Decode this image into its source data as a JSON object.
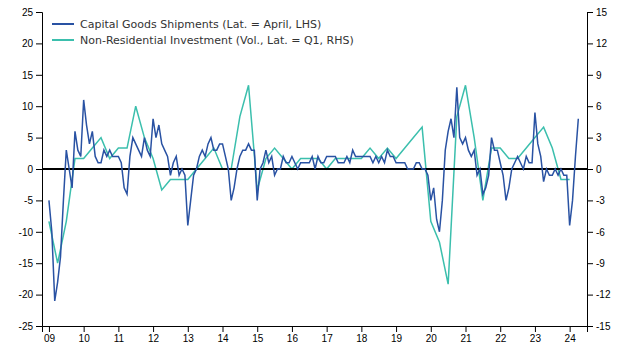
{
  "chart_data": {
    "type": "line",
    "legend": "upper left",
    "grid": false,
    "xlim": [
      2008.8,
      2024.5
    ],
    "xticks": [
      {
        "value": 2009,
        "label": "09"
      },
      {
        "value": 2010,
        "label": "10"
      },
      {
        "value": 2011,
        "label": "11"
      },
      {
        "value": 2012,
        "label": "12"
      },
      {
        "value": 2013,
        "label": "13"
      },
      {
        "value": 2014,
        "label": "14"
      },
      {
        "value": 2015,
        "label": "15"
      },
      {
        "value": 2016,
        "label": "16"
      },
      {
        "value": 2017,
        "label": "17"
      },
      {
        "value": 2018,
        "label": "18"
      },
      {
        "value": 2019,
        "label": "19"
      },
      {
        "value": 2020,
        "label": "20"
      },
      {
        "value": 2021,
        "label": "21"
      },
      {
        "value": 2022,
        "label": "22"
      },
      {
        "value": 2023,
        "label": "23"
      },
      {
        "value": 2024,
        "label": "24"
      }
    ],
    "ylim": [
      -25,
      25
    ],
    "yticks": [
      -25,
      -20,
      -15,
      -10,
      -5,
      0,
      5,
      10,
      15,
      20,
      25
    ],
    "y2lim": [
      -15,
      15
    ],
    "y2ticks": [
      -15,
      -12,
      -9,
      -6,
      -3,
      0,
      3,
      6,
      9,
      12,
      15
    ],
    "hlines": [
      {
        "y": 0,
        "color": "#000000"
      }
    ],
    "series": [
      {
        "name": "Capital Goods Shipments (Lat. = April, LHS)",
        "color": "#2952a3",
        "axis": "y",
        "x": [
          2009.0,
          2009.083,
          2009.167,
          2009.25,
          2009.333,
          2009.417,
          2009.5,
          2009.583,
          2009.667,
          2009.75,
          2009.833,
          2009.917,
          2010.0,
          2010.083,
          2010.167,
          2010.25,
          2010.333,
          2010.417,
          2010.5,
          2010.583,
          2010.667,
          2010.75,
          2010.833,
          2010.917,
          2011.0,
          2011.083,
          2011.167,
          2011.25,
          2011.333,
          2011.417,
          2011.5,
          2011.583,
          2011.667,
          2011.75,
          2011.833,
          2011.917,
          2012.0,
          2012.083,
          2012.167,
          2012.25,
          2012.333,
          2012.417,
          2012.5,
          2012.583,
          2012.667,
          2012.75,
          2012.833,
          2012.917,
          2013.0,
          2013.083,
          2013.167,
          2013.25,
          2013.333,
          2013.417,
          2013.5,
          2013.583,
          2013.667,
          2013.75,
          2013.833,
          2013.917,
          2014.0,
          2014.083,
          2014.167,
          2014.25,
          2014.333,
          2014.417,
          2014.5,
          2014.583,
          2014.667,
          2014.75,
          2014.833,
          2014.917,
          2015.0,
          2015.083,
          2015.167,
          2015.25,
          2015.333,
          2015.417,
          2015.5,
          2015.583,
          2015.667,
          2015.75,
          2015.833,
          2015.917,
          2016.0,
          2016.083,
          2016.167,
          2016.25,
          2016.333,
          2016.417,
          2016.5,
          2016.583,
          2016.667,
          2016.75,
          2016.833,
          2016.917,
          2017.0,
          2017.083,
          2017.167,
          2017.25,
          2017.333,
          2017.417,
          2017.5,
          2017.583,
          2017.667,
          2017.75,
          2017.833,
          2017.917,
          2018.0,
          2018.083,
          2018.167,
          2018.25,
          2018.333,
          2018.417,
          2018.5,
          2018.583,
          2018.667,
          2018.75,
          2018.833,
          2018.917,
          2019.0,
          2019.083,
          2019.167,
          2019.25,
          2019.333,
          2019.417,
          2019.5,
          2019.583,
          2019.667,
          2019.75,
          2019.833,
          2019.917,
          2020.0,
          2020.083,
          2020.167,
          2020.25,
          2020.333,
          2020.417,
          2020.5,
          2020.583,
          2020.667,
          2020.75,
          2020.833,
          2020.917,
          2021.0,
          2021.083,
          2021.167,
          2021.25,
          2021.333,
          2021.417,
          2021.5,
          2021.583,
          2021.667,
          2021.75,
          2021.833,
          2021.917,
          2022.0,
          2022.083,
          2022.167,
          2022.25,
          2022.333,
          2022.417,
          2022.5,
          2022.583,
          2022.667,
          2022.75,
          2022.833,
          2022.917,
          2023.0,
          2023.083,
          2023.167,
          2023.25,
          2023.333,
          2023.417,
          2023.5,
          2023.583,
          2023.667,
          2023.75,
          2023.833,
          2023.917,
          2024.0,
          2024.083,
          2024.167,
          2024.25
        ],
        "values": [
          -5,
          -10,
          -21,
          -18,
          -14,
          -5,
          3,
          0,
          -3,
          6,
          3,
          2,
          11,
          7,
          4,
          6,
          2,
          1,
          1,
          3,
          2,
          3,
          2,
          2,
          2,
          1,
          -3,
          -4,
          2,
          5,
          4,
          3,
          2,
          5,
          3,
          2,
          8,
          5,
          7,
          4,
          3,
          2,
          -1,
          1,
          2,
          -1,
          0,
          -1,
          -9,
          -5,
          -1,
          0,
          2,
          3,
          2,
          4,
          5,
          3,
          3,
          4,
          4,
          2,
          0,
          -5,
          -3,
          0,
          2,
          3,
          3,
          4,
          3,
          3,
          -5,
          0,
          1,
          3,
          1,
          2,
          -1,
          0,
          0,
          2,
          1,
          1,
          2,
          1,
          0,
          1,
          1,
          1,
          1,
          2,
          0,
          2,
          1,
          1,
          2,
          2,
          2,
          2,
          1,
          1,
          1,
          2,
          1,
          3,
          2,
          2,
          2,
          2,
          2,
          2,
          1,
          2,
          1,
          2,
          1,
          3,
          2,
          2,
          1,
          1,
          1,
          1,
          0,
          0,
          0,
          1,
          1,
          0,
          0,
          -1,
          -5,
          -3,
          -8,
          -10,
          -5,
          3,
          6,
          8,
          5,
          13,
          5,
          4,
          5,
          3,
          2,
          3,
          -1,
          0,
          -4,
          -3,
          -1,
          5,
          3,
          3,
          1,
          -1,
          -5,
          -3,
          0,
          1,
          2,
          1,
          0,
          2,
          1,
          1,
          9,
          4,
          2,
          -2,
          0,
          -1,
          -1,
          0,
          -1,
          0,
          -1,
          -1,
          -9,
          -5,
          2,
          8
        ]
      },
      {
        "name": "Non-Residential Investment (Vol., Lat. = Q1, RHS)",
        "color": "#3bbfad",
        "axis": "y2",
        "x": [
          2009.0,
          2009.25,
          2009.5,
          2009.75,
          2010.0,
          2010.25,
          2010.5,
          2010.75,
          2011.0,
          2011.25,
          2011.5,
          2011.75,
          2012.0,
          2012.25,
          2012.5,
          2012.75,
          2013.0,
          2013.25,
          2013.5,
          2013.75,
          2014.0,
          2014.25,
          2014.5,
          2014.75,
          2015.0,
          2015.25,
          2015.5,
          2015.75,
          2016.0,
          2016.25,
          2016.5,
          2016.75,
          2017.0,
          2017.25,
          2017.5,
          2017.75,
          2018.0,
          2018.25,
          2018.5,
          2018.75,
          2019.0,
          2019.25,
          2019.5,
          2019.75,
          2020.0,
          2020.25,
          2020.5,
          2020.75,
          2021.0,
          2021.25,
          2021.5,
          2021.75,
          2022.0,
          2022.25,
          2022.5,
          2022.75,
          2023.0,
          2023.25,
          2023.5,
          2023.75,
          2024.0
        ],
        "values": [
          -5,
          -9,
          -5,
          1,
          1,
          2,
          3,
          1,
          2,
          2,
          6,
          3,
          1,
          -2,
          -1,
          -1,
          -1,
          0,
          1,
          2,
          0,
          0,
          5,
          8,
          -2,
          1,
          2,
          1,
          0,
          1,
          1,
          1,
          0,
          1,
          1,
          1,
          1,
          2,
          1,
          2,
          1,
          2,
          3,
          4,
          -5,
          -7,
          -11,
          5,
          8,
          3,
          -3,
          2,
          2,
          1,
          1,
          2,
          3,
          4,
          2,
          -1,
          -1
        ]
      }
    ]
  }
}
